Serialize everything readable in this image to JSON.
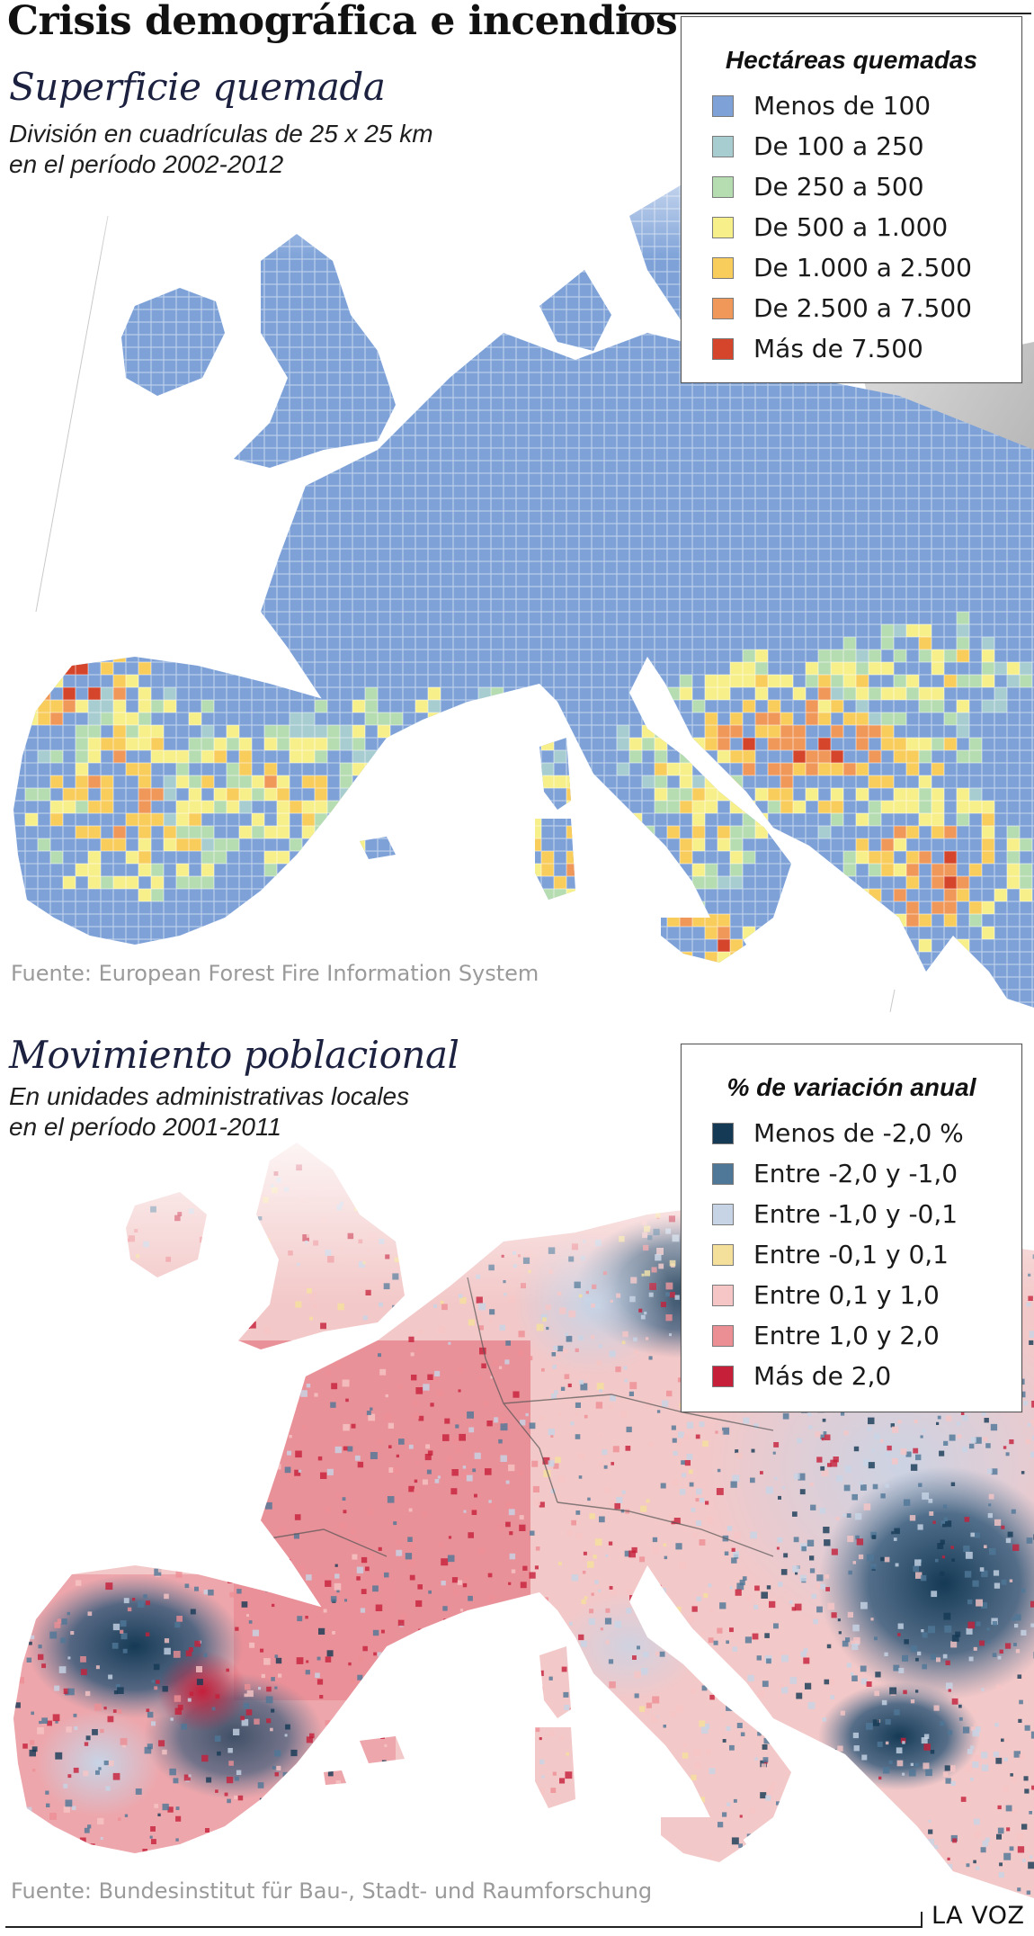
{
  "header": {
    "title": "Crisis demográfica e incendios"
  },
  "burned_map": {
    "title": "Superficie quemada",
    "subtitle_line1": "División en cuadrículas de 25 x 25 km",
    "subtitle_line2": "en el período 2002-2012",
    "source": "Fuente: European Forest Fire Information System",
    "legend": {
      "title": "Hectáreas quemadas",
      "items": [
        {
          "label": "Menos de 100",
          "color": "#7ea2d8"
        },
        {
          "label": "De 100 a 250",
          "color": "#a7cdd1"
        },
        {
          "label": "De 250 a 500",
          "color": "#b6dcb2"
        },
        {
          "label": "De 500 a 1.000",
          "color": "#f7ef8a"
        },
        {
          "label": "De 1.000 a 2.500",
          "color": "#f9cd5c"
        },
        {
          "label": "De 2.500 a 7.500",
          "color": "#f0975a"
        },
        {
          "label": "Más de 7.500",
          "color": "#d5452b"
        }
      ]
    }
  },
  "population_map": {
    "title": "Movimiento poblacional",
    "subtitle_line1": "En unidades administrativas locales",
    "subtitle_line2": "en el período 2001-2011",
    "source": "Fuente: Bundesinstitut für Bau-, Stadt- und Raumforschung",
    "legend": {
      "title": "% de variación anual",
      "items": [
        {
          "label": "Menos de -2,0 %",
          "color": "#153a55"
        },
        {
          "label": "Entre -2,0 y -1,0",
          "color": "#4f7797"
        },
        {
          "label": "Entre -1,0 y -0,1",
          "color": "#c7d4e6"
        },
        {
          "label": "Entre -0,1 y 0,1",
          "color": "#f5e09b"
        },
        {
          "label": "Entre 0,1 y 1,0",
          "color": "#f6c6c6"
        },
        {
          "label": "Entre 1,0 y 2,0",
          "color": "#ec8f95"
        },
        {
          "label": "Más de 2,0",
          "color": "#c51f3a"
        }
      ]
    }
  },
  "footer": {
    "brand": "LA VOZ"
  }
}
